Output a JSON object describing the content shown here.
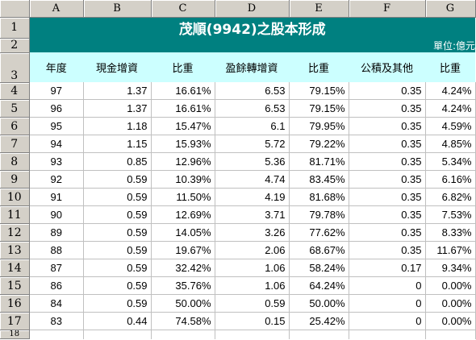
{
  "columns": [
    "A",
    "B",
    "C",
    "D",
    "E",
    "F",
    "G"
  ],
  "rows": [
    "1",
    "2",
    "3",
    "4",
    "5",
    "6",
    "7",
    "8",
    "9",
    "10",
    "11",
    "12",
    "13",
    "14",
    "15",
    "16",
    "17",
    "18"
  ],
  "title": "茂順(9942)之股本形成",
  "unit": "單位:億元",
  "headers": [
    "年度",
    "現金增資",
    "比重",
    "盈餘轉增資",
    "比重",
    "公積及其他",
    "比重"
  ],
  "data": [
    [
      "97",
      "1.37",
      "16.61%",
      "6.53",
      "79.15%",
      "0.35",
      "4.24%"
    ],
    [
      "96",
      "1.37",
      "16.61%",
      "6.53",
      "79.15%",
      "0.35",
      "4.24%"
    ],
    [
      "95",
      "1.18",
      "15.47%",
      "6.1",
      "79.95%",
      "0.35",
      "4.59%"
    ],
    [
      "94",
      "1.15",
      "15.93%",
      "5.72",
      "79.22%",
      "0.35",
      "4.85%"
    ],
    [
      "93",
      "0.85",
      "12.96%",
      "5.36",
      "81.71%",
      "0.35",
      "5.34%"
    ],
    [
      "92",
      "0.59",
      "10.39%",
      "4.74",
      "83.45%",
      "0.35",
      "6.16%"
    ],
    [
      "91",
      "0.59",
      "11.50%",
      "4.19",
      "81.68%",
      "0.35",
      "6.82%"
    ],
    [
      "90",
      "0.59",
      "12.69%",
      "3.71",
      "79.78%",
      "0.35",
      "7.53%"
    ],
    [
      "89",
      "0.59",
      "14.05%",
      "3.26",
      "77.62%",
      "0.35",
      "8.33%"
    ],
    [
      "88",
      "0.59",
      "19.67%",
      "2.06",
      "68.67%",
      "0.35",
      "11.67%"
    ],
    [
      "87",
      "0.59",
      "32.42%",
      "1.06",
      "58.24%",
      "0.17",
      "9.34%"
    ],
    [
      "86",
      "0.59",
      "35.76%",
      "1.06",
      "64.24%",
      "0",
      "0.00%"
    ],
    [
      "84",
      "0.59",
      "50.00%",
      "0.59",
      "50.00%",
      "0",
      "0.00%"
    ],
    [
      "83",
      "0.44",
      "74.58%",
      "0.15",
      "25.42%",
      "0",
      "0.00%"
    ]
  ],
  "colors": {
    "title_bg": "#008080",
    "header_bg": "#ccffff",
    "grid_line": "#c0c0c0",
    "chrome_bg": "#d4d0c8"
  }
}
